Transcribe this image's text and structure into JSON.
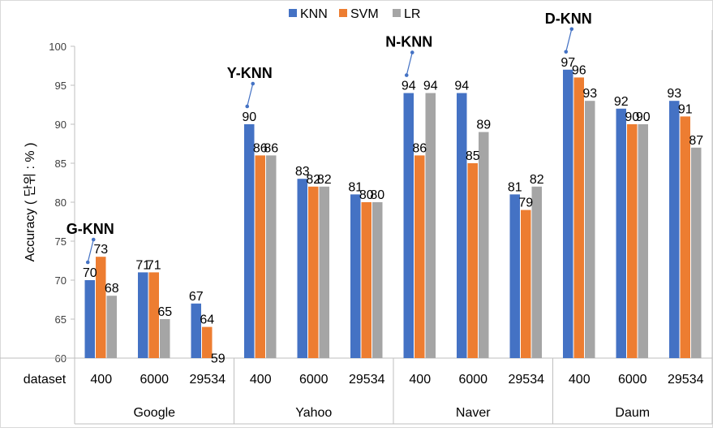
{
  "chart_data": {
    "type": "bar",
    "xlabel": "dataset",
    "ylabel": "Accuracy ( 단위 : % )",
    "ylim": [
      60,
      100
    ],
    "yticks": [
      60,
      65,
      70,
      75,
      80,
      85,
      90,
      95,
      100
    ],
    "grid": false,
    "legend": "top-center",
    "groups": [
      {
        "name": "Google",
        "categories": [
          "400",
          "6000",
          "29534"
        ]
      },
      {
        "name": "Yahoo",
        "categories": [
          "400",
          "6000",
          "29534"
        ]
      },
      {
        "name": "Naver",
        "categories": [
          "400",
          "6000",
          "29534"
        ]
      },
      {
        "name": "Daum",
        "categories": [
          "400",
          "6000",
          "29534"
        ]
      }
    ],
    "series": [
      {
        "name": "KNN",
        "color": "#4472c4",
        "values": [
          70,
          71,
          67,
          90,
          83,
          81,
          94,
          94,
          81,
          97,
          92,
          93
        ]
      },
      {
        "name": "SVM",
        "color": "#ed7d31",
        "values": [
          73,
          71,
          64,
          86,
          82,
          80,
          86,
          85,
          79,
          96,
          90,
          91
        ]
      },
      {
        "name": "LR",
        "color": "#a5a5a5",
        "values": [
          68,
          65,
          59,
          86,
          82,
          80,
          94,
          89,
          82,
          93,
          90,
          87
        ]
      }
    ],
    "annotations": [
      {
        "text": "G-KNN",
        "index": 0
      },
      {
        "text": "Y-KNN",
        "index": 3
      },
      {
        "text": "N-KNN",
        "index": 6
      },
      {
        "text": "D-KNN",
        "index": 9
      }
    ]
  }
}
